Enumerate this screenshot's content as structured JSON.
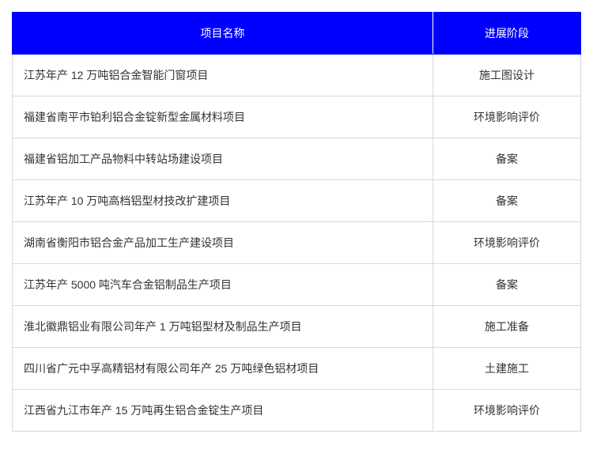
{
  "table": {
    "header_bg": "#0000ff",
    "header_fg": "#ffffff",
    "border_color": "#d9d9d9",
    "text_color": "#333333",
    "font_size": 14,
    "columns": [
      {
        "label": "项目名称",
        "align": "left",
        "width_pct": 74
      },
      {
        "label": "进展阶段",
        "align": "center",
        "width_pct": 26
      }
    ],
    "rows": [
      {
        "name": "江苏年产 12 万吨铝合金智能门窗项目",
        "stage": "施工图设计"
      },
      {
        "name": "福建省南平市铂利铝合金锭新型金属材料项目",
        "stage": "环境影响评价"
      },
      {
        "name": "福建省铝加工产品物料中转站场建设项目",
        "stage": "备案"
      },
      {
        "name": "江苏年产 10 万吨高档铝型材技改扩建项目",
        "stage": "备案"
      },
      {
        "name": "湖南省衡阳市铝合金产品加工生产建设项目",
        "stage": "环境影响评价"
      },
      {
        "name": "江苏年产 5000 吨汽车合金铝制品生产项目",
        "stage": "备案"
      },
      {
        "name": "淮北徽鼎铝业有限公司年产 1 万吨铝型材及制品生产项目",
        "stage": "施工准备"
      },
      {
        "name": "四川省广元中孚高精铝材有限公司年产 25 万吨绿色铝材项目",
        "stage": "土建施工"
      },
      {
        "name": "江西省九江市年产 15 万吨再生铝合金锭生产项目",
        "stage": "环境影响评价"
      }
    ]
  }
}
